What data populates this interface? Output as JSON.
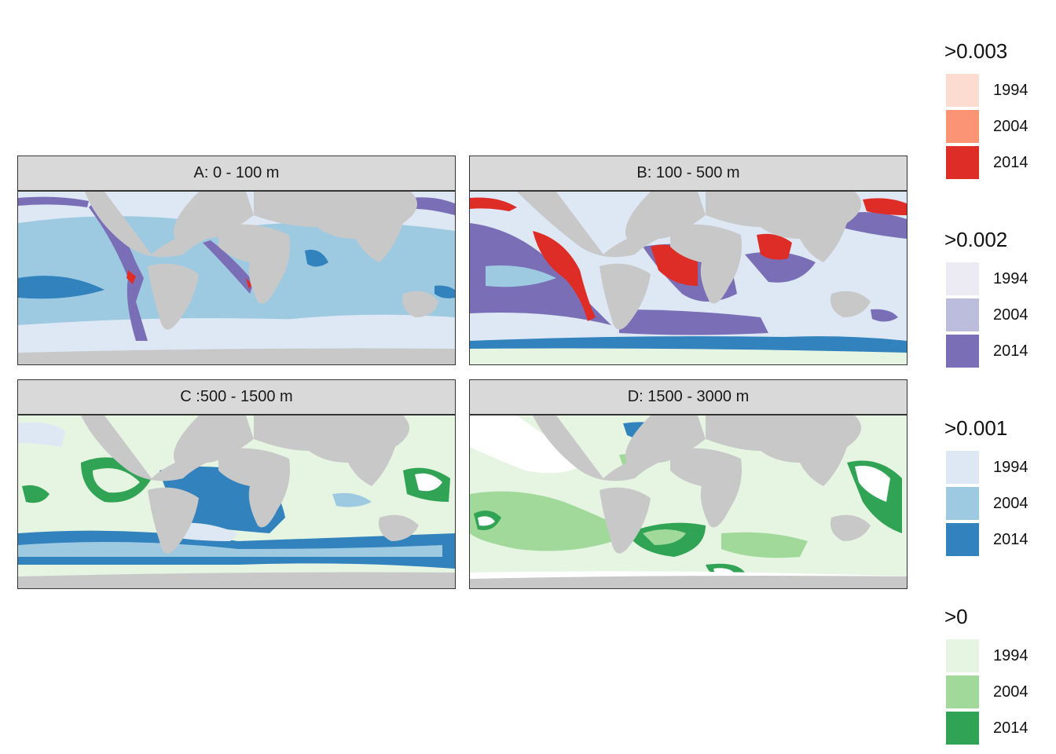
{
  "panels": [
    {
      "id": "A",
      "title": "A: 0 - 100 m"
    },
    {
      "id": "B",
      "title": "B: 100 - 500 m"
    },
    {
      "id": "C",
      "title": "C :500 - 1500 m"
    },
    {
      "id": "D",
      "title": "D: 1500 - 3000 m"
    }
  ],
  "legends": [
    {
      "title": ">0.003",
      "items": [
        {
          "label": "1994",
          "color": "#fcdcd0"
        },
        {
          "label": "2004",
          "color": "#fb9474"
        },
        {
          "label": "2014",
          "color": "#de2d26"
        }
      ]
    },
    {
      "title": ">0.002",
      "items": [
        {
          "label": "1994",
          "color": "#ecebf4"
        },
        {
          "label": "2004",
          "color": "#bcbddc"
        },
        {
          "label": "2014",
          "color": "#7a6fb7"
        }
      ]
    },
    {
      "title": ">0.001",
      "items": [
        {
          "label": "1994",
          "color": "#dde8f4"
        },
        {
          "label": "2004",
          "color": "#9ecae1"
        },
        {
          "label": "2014",
          "color": "#3182bd"
        }
      ]
    },
    {
      "title": ">0",
      "items": [
        {
          "label": "1994",
          "color": "#e6f4e2"
        },
        {
          "label": "2004",
          "color": "#a1d99b"
        },
        {
          "label": "2014",
          "color": "#31a354"
        }
      ]
    }
  ],
  "land_color": "#c8c8c8"
}
